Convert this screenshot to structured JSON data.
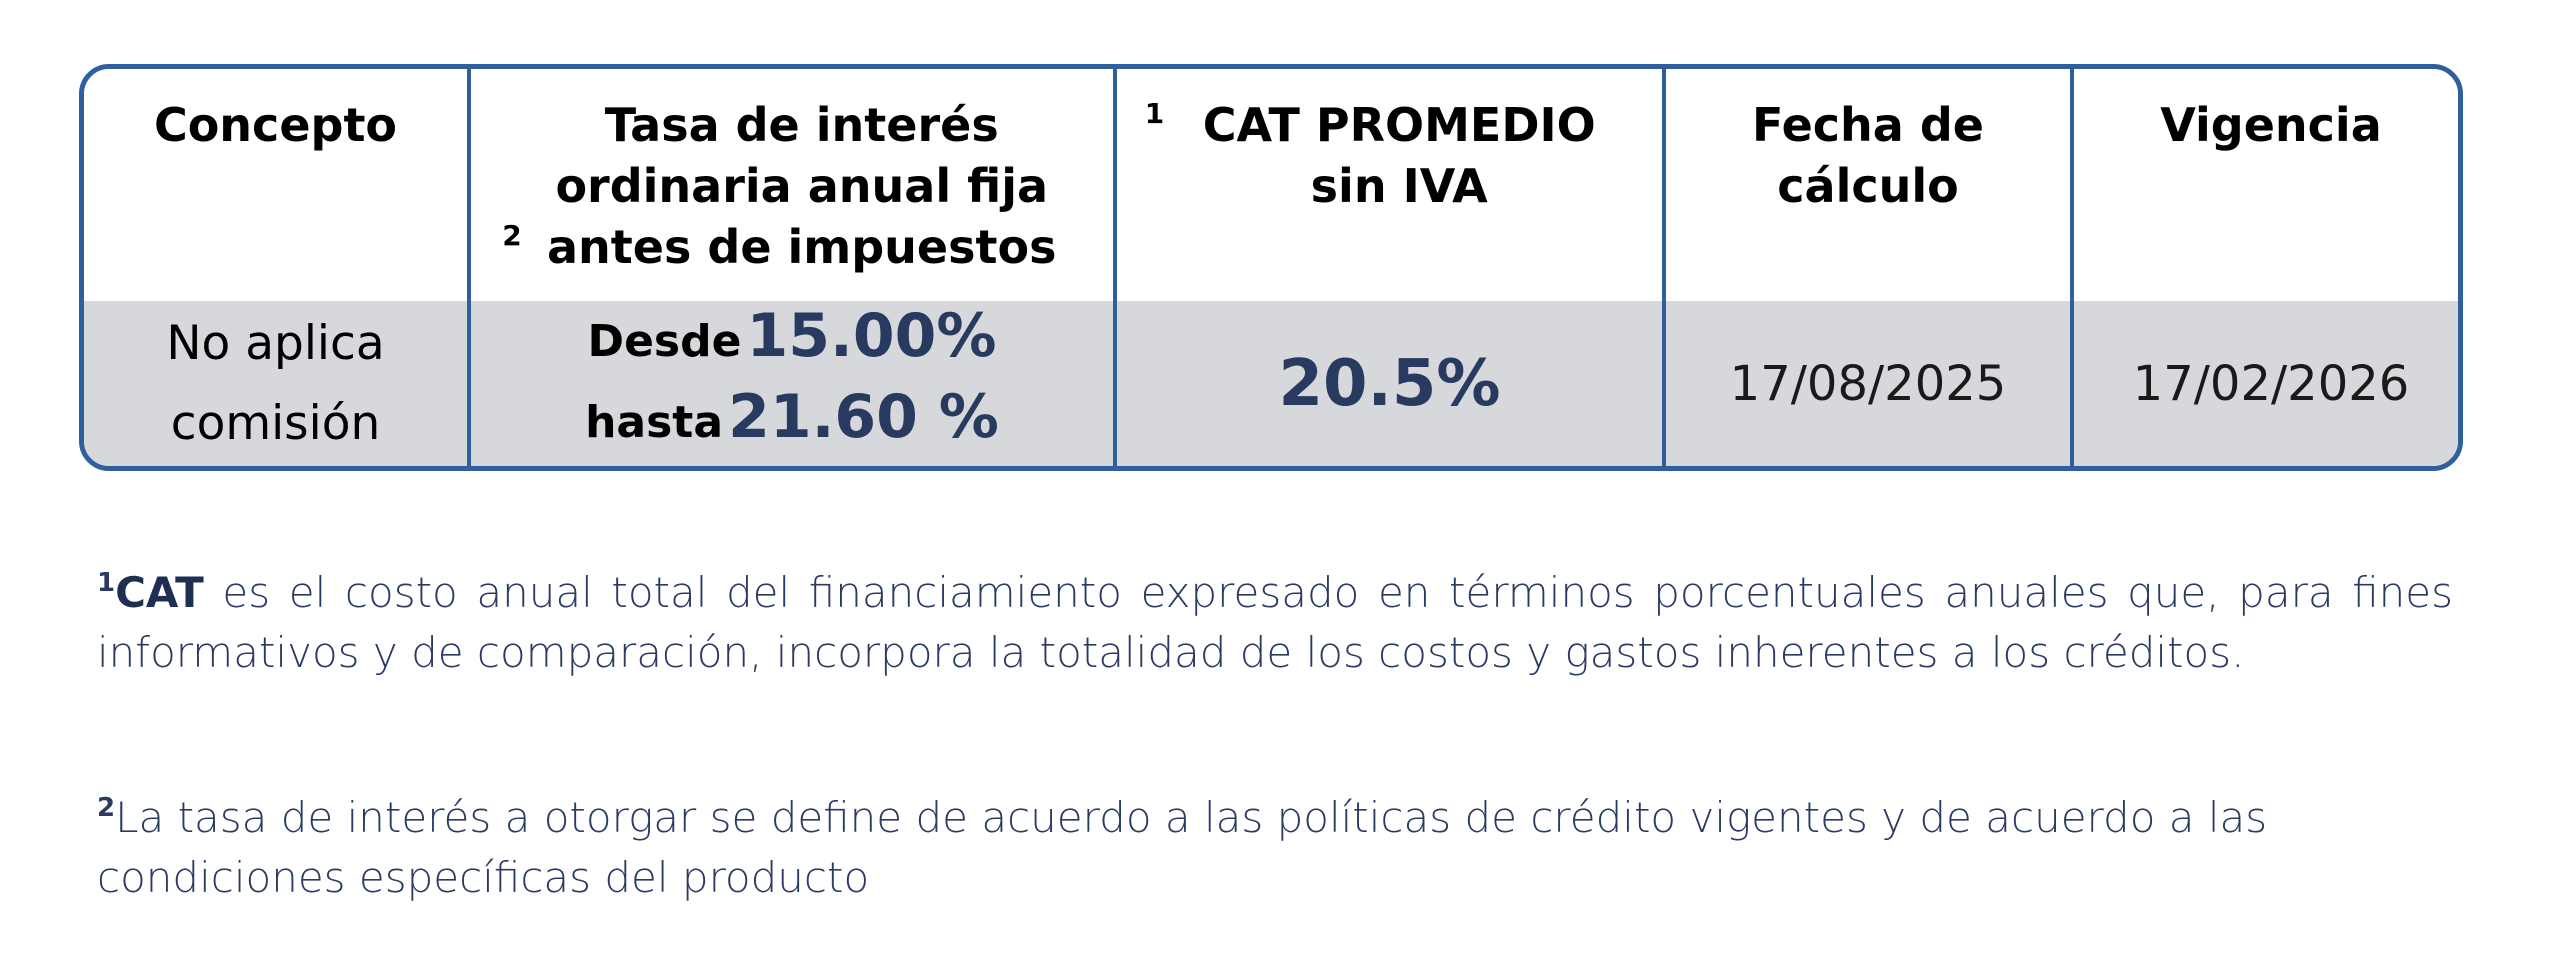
{
  "table": {
    "headers": [
      {
        "sup": "",
        "label": "Concepto"
      },
      {
        "sup": "2",
        "label": "Tasa de interés ordinaria anual fija antes de impuestos"
      },
      {
        "sup": "1",
        "label": "CAT PROMEDIO sin IVA"
      },
      {
        "sup": "",
        "label": "Fecha de cálculo"
      },
      {
        "sup": "",
        "label": "Vigencia"
      }
    ],
    "row": {
      "concepto": "No aplica comisión",
      "rate_from_word": "Desde",
      "rate_from_value": "15.00%",
      "rate_to_word": "hasta",
      "rate_to_value": "21.60 %",
      "cat": "20.5%",
      "fecha_calculo": "17/08/2025",
      "vigencia": "17/02/2026"
    }
  },
  "notes": [
    {
      "sup": "1",
      "lead": "CAT",
      "text": " es el costo anual total del financiamiento expresado en términos porcentuales anuales que, para fines informativos y de comparación, incorpora la totalidad de los costos y gastos inherentes a los créditos."
    },
    {
      "sup": "2",
      "lead": "",
      "text": "La tasa de interés a otorgar se define de acuerdo a las políticas de crédito vigentes y de acuerdo a las condiciones específicas del producto"
    }
  ],
  "colors": {
    "border": "#2f5f9e",
    "row_background": "#d7d8dc",
    "accent_text": "#283a5f"
  }
}
